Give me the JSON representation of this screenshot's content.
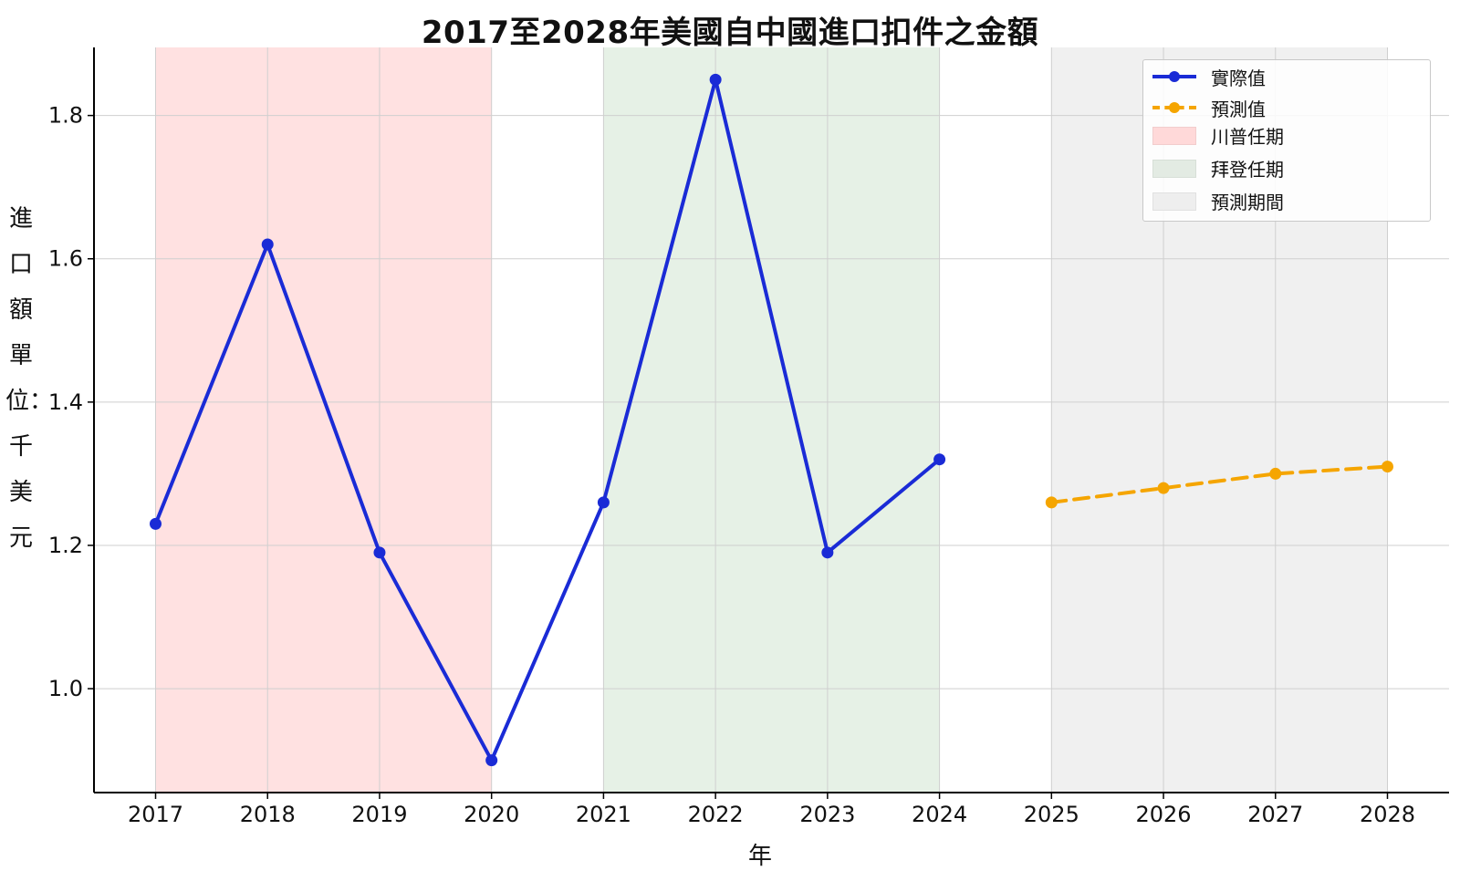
{
  "chart_data": {
    "type": "line",
    "title": "2017至2028年美國自中國進口扣件之金額",
    "xlabel": "年",
    "ylabel": "進口額單位：千美元",
    "x": [
      2017,
      2018,
      2019,
      2020,
      2021,
      2022,
      2023,
      2024,
      2025,
      2026,
      2027,
      2028
    ],
    "xlim": [
      2016.45,
      2028.55
    ],
    "ylim": [
      0.855,
      1.895
    ],
    "yticks": [
      1.0,
      1.2,
      1.4,
      1.6,
      1.8
    ],
    "grid": true,
    "legend_position": "top-right",
    "series": [
      {
        "name": "實際值",
        "color": "#1a2bd6",
        "style": "solid",
        "points": [
          {
            "x": 2017,
            "y": 1.23
          },
          {
            "x": 2018,
            "y": 1.62
          },
          {
            "x": 2019,
            "y": 1.19
          },
          {
            "x": 2020,
            "y": 0.9
          },
          {
            "x": 2021,
            "y": 1.26
          },
          {
            "x": 2022,
            "y": 1.85
          },
          {
            "x": 2023,
            "y": 1.19
          },
          {
            "x": 2024,
            "y": 1.32
          }
        ]
      },
      {
        "name": "預測值",
        "color": "#f5a500",
        "style": "dashed",
        "points": [
          {
            "x": 2025,
            "y": 1.26
          },
          {
            "x": 2026,
            "y": 1.28
          },
          {
            "x": 2027,
            "y": 1.3
          },
          {
            "x": 2028,
            "y": 1.31
          }
        ]
      }
    ],
    "spans": [
      {
        "name": "川普任期",
        "start": 2017,
        "end": 2020,
        "color": "#ffe1e1"
      },
      {
        "name": "拜登任期",
        "start": 2021,
        "end": 2024,
        "color": "#e6f1e6"
      },
      {
        "name": "預測期間",
        "start": 2025,
        "end": 2028,
        "color": "#f0f0f0"
      }
    ]
  },
  "legend": {
    "actual": "實際值",
    "forecast": "預測值",
    "trump": "川普任期",
    "biden": "拜登任期",
    "forecast_period": "預測期間"
  }
}
